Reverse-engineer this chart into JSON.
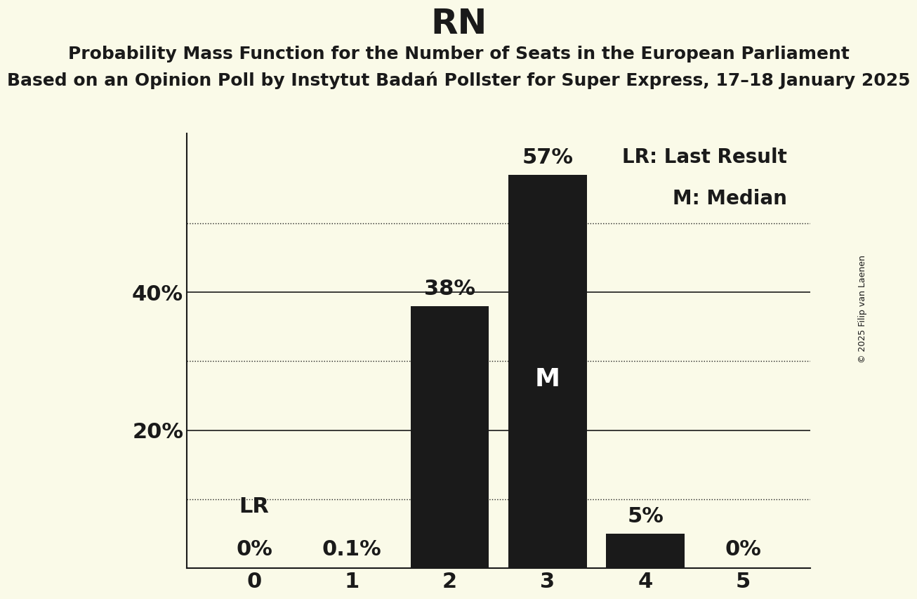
{
  "title": "RN",
  "subtitle1": "Probability Mass Function for the Number of Seats in the European Parliament",
  "subtitle2": "Based on an Opinion Poll by Instytut Badań Pollster for Super Express, 17–18 January 2025",
  "copyright": "© 2025 Filip van Laenen",
  "categories": [
    0,
    1,
    2,
    3,
    4,
    5
  ],
  "values": [
    0.0,
    0.1,
    38.0,
    57.0,
    5.0,
    0.0
  ],
  "bar_color": "#1a1a1a",
  "background_color": "#fafae8",
  "text_color": "#1a1a1a",
  "ylim": [
    0,
    63
  ],
  "yticks_solid": [
    20,
    40
  ],
  "yticks_dotted": [
    10,
    30,
    50
  ],
  "legend_lr": "LR: Last Result",
  "legend_m": "M: Median",
  "lr_bar": 0,
  "median_bar": 3,
  "title_fontsize": 36,
  "subtitle1_fontsize": 18,
  "subtitle2_fontsize": 18,
  "axis_fontsize": 22,
  "bar_label_fontsize": 22,
  "median_label_fontsize": 26,
  "lr_label_fontsize": 22,
  "legend_fontsize": 20
}
